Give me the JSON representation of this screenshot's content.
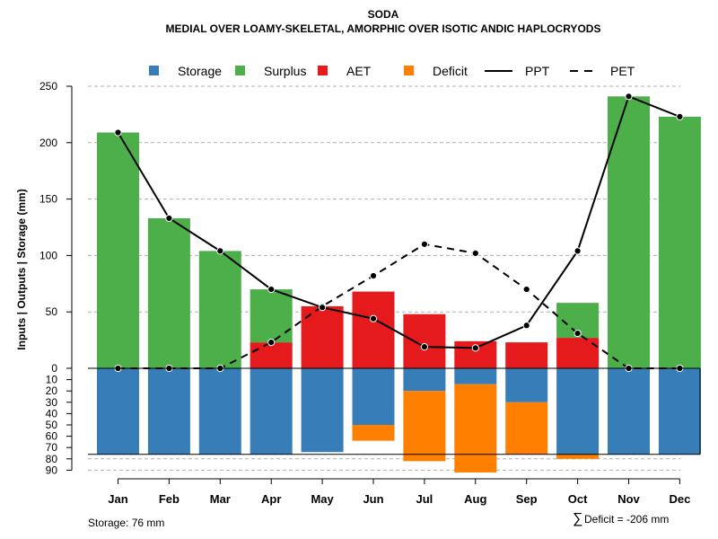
{
  "chart_data": {
    "type": "bar",
    "title": "SODA",
    "subtitle": "MEDIAL OVER LOAMY-SKELETAL, AMORPHIC OVER ISOTIC ANDIC HAPLOCRYODS",
    "ylabel": "Inputs | Outputs | Storage    (mm)",
    "ylim": [
      -90,
      250
    ],
    "upper_ticks": [
      "0",
      "50",
      "100",
      "150",
      "200",
      "250"
    ],
    "lower_ticks": [
      "10",
      "20",
      "30",
      "40",
      "50",
      "60",
      "70",
      "80",
      "90"
    ],
    "categories": [
      "Jan",
      "Feb",
      "Mar",
      "Apr",
      "May",
      "Jun",
      "Jul",
      "Aug",
      "Sep",
      "Oct",
      "Nov",
      "Dec"
    ],
    "series": [
      {
        "name": "Storage",
        "color": "#377EB8",
        "values": [
          76,
          76,
          76,
          76,
          74,
          50,
          20,
          14,
          30,
          76,
          76,
          76
        ]
      },
      {
        "name": "Surplus",
        "color": "#4DAF4A",
        "values": [
          209,
          133,
          104,
          47,
          0,
          0,
          0,
          0,
          0,
          31,
          241,
          223
        ]
      },
      {
        "name": "AET",
        "color": "#E41A1C",
        "values": [
          0,
          0,
          0,
          23,
          55,
          68,
          48,
          24,
          23,
          27,
          0,
          0
        ]
      },
      {
        "name": "Deficit",
        "color": "#FF7F00",
        "values": [
          0,
          0,
          0,
          0,
          0,
          14,
          62,
          78,
          46,
          4,
          0,
          0
        ]
      },
      {
        "name": "PPT",
        "color": "#000000",
        "values": [
          209,
          133,
          104,
          70,
          54,
          44,
          19,
          18,
          38,
          104,
          241,
          223
        ]
      },
      {
        "name": "PET",
        "color": "#000000",
        "values": [
          0,
          0,
          0,
          23,
          55,
          82,
          110,
          102,
          70,
          31,
          0,
          0
        ]
      }
    ],
    "legend": [
      "Storage",
      "Surplus",
      "AET",
      "Deficit",
      "PPT",
      "PET"
    ],
    "legend_position": "top",
    "footer_left": "Storage: 76 mm",
    "footer_right_symbol": "∑",
    "footer_right": "Deficit = -206 mm"
  }
}
